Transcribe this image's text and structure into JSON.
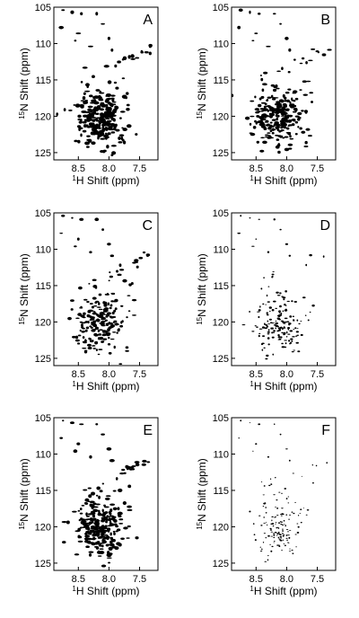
{
  "figure": {
    "panels": [
      "A",
      "B",
      "C",
      "D",
      "E",
      "F"
    ]
  },
  "chart_data": [
    {
      "type": "scatter",
      "panel_label": "A",
      "xlabel_sup": "1",
      "xlabel_rest": "H Shift (ppm)",
      "ylabel_sup": "15",
      "ylabel_rest": "N Shift (ppm)",
      "xlim": [
        8.9,
        7.2
      ],
      "x_reversed": true,
      "ylim": [
        105,
        126
      ],
      "y_reversed": true,
      "x_ticks": [
        8.5,
        8.0,
        7.5
      ],
      "x_tick_labels": [
        "8.5",
        "8.0",
        "7.5"
      ],
      "y_ticks": [
        105,
        110,
        115,
        120,
        125
      ],
      "y_tick_labels": [
        "105",
        "110",
        "115",
        "120",
        "125"
      ],
      "grid": false,
      "peak_count": 260,
      "peak_color": "#000000"
    },
    {
      "type": "scatter",
      "panel_label": "B",
      "xlabel_sup": "1",
      "xlabel_rest": "H Shift (ppm)",
      "ylabel_sup": "15",
      "ylabel_rest": "N Shift (ppm)",
      "xlim": [
        8.9,
        7.2
      ],
      "x_reversed": true,
      "ylim": [
        105,
        126
      ],
      "y_reversed": true,
      "x_ticks": [
        8.5,
        8.0,
        7.5
      ],
      "x_tick_labels": [
        "8.5",
        "8.0",
        "7.5"
      ],
      "y_ticks": [
        105,
        110,
        115,
        120,
        125
      ],
      "y_tick_labels": [
        "105",
        "110",
        "115",
        "120",
        "125"
      ],
      "grid": false,
      "peak_count": 240,
      "peak_color": "#000000"
    },
    {
      "type": "scatter",
      "panel_label": "C",
      "xlabel_sup": "1",
      "xlabel_rest": "H Shift (ppm)",
      "ylabel_sup": "15",
      "ylabel_rest": "N Shift (ppm)",
      "xlim": [
        8.9,
        7.2
      ],
      "x_reversed": true,
      "ylim": [
        105,
        126
      ],
      "y_reversed": true,
      "x_ticks": [
        8.5,
        8.0,
        7.5
      ],
      "x_tick_labels": [
        "8.5",
        "8.0",
        "7.5"
      ],
      "y_ticks": [
        105,
        110,
        115,
        120,
        125
      ],
      "y_tick_labels": [
        "105",
        "110",
        "115",
        "120",
        "125"
      ],
      "grid": false,
      "peak_count": 200,
      "peak_color": "#000000"
    },
    {
      "type": "scatter",
      "panel_label": "D",
      "xlabel_sup": "1",
      "xlabel_rest": "H Shift (ppm)",
      "ylabel_sup": "15",
      "ylabel_rest": "N Shift (ppm)",
      "xlim": [
        8.9,
        7.2
      ],
      "x_reversed": true,
      "ylim": [
        105,
        126
      ],
      "y_reversed": true,
      "x_ticks": [
        8.5,
        8.0,
        7.5
      ],
      "x_tick_labels": [
        "8.5",
        "8.0",
        "7.5"
      ],
      "y_ticks": [
        105,
        110,
        115,
        120,
        125
      ],
      "y_tick_labels": [
        "105",
        "110",
        "115",
        "120",
        "125"
      ],
      "grid": false,
      "peak_count": 150,
      "peak_color": "#000000"
    },
    {
      "type": "scatter",
      "panel_label": "E",
      "xlabel_sup": "1",
      "xlabel_rest": "H Shift (ppm)",
      "ylabel_sup": "15",
      "ylabel_rest": "N Shift (ppm)",
      "xlim": [
        8.9,
        7.2
      ],
      "x_reversed": true,
      "ylim": [
        105,
        126
      ],
      "y_reversed": true,
      "x_ticks": [
        8.5,
        8.0,
        7.5
      ],
      "x_tick_labels": [
        "8.5",
        "8.0",
        "7.5"
      ],
      "y_ticks": [
        105,
        110,
        115,
        120,
        125
      ],
      "y_tick_labels": [
        "105",
        "110",
        "115",
        "120",
        "125"
      ],
      "grid": false,
      "peak_count": 240,
      "peak_color": "#000000"
    },
    {
      "type": "scatter",
      "panel_label": "F",
      "xlabel_sup": "1",
      "xlabel_rest": "H Shift (ppm)",
      "ylabel_sup": "15",
      "ylabel_rest": "N Shift (ppm)",
      "xlim": [
        8.9,
        7.2
      ],
      "x_reversed": true,
      "ylim": [
        105,
        126
      ],
      "y_reversed": true,
      "x_ticks": [
        8.5,
        8.0,
        7.5
      ],
      "x_tick_labels": [
        "8.5",
        "8.0",
        "7.5"
      ],
      "y_ticks": [
        105,
        110,
        115,
        120,
        125
      ],
      "y_tick_labels": [
        "105",
        "110",
        "115",
        "120",
        "125"
      ],
      "grid": false,
      "peak_count": 130,
      "peak_color": "#000000"
    }
  ]
}
